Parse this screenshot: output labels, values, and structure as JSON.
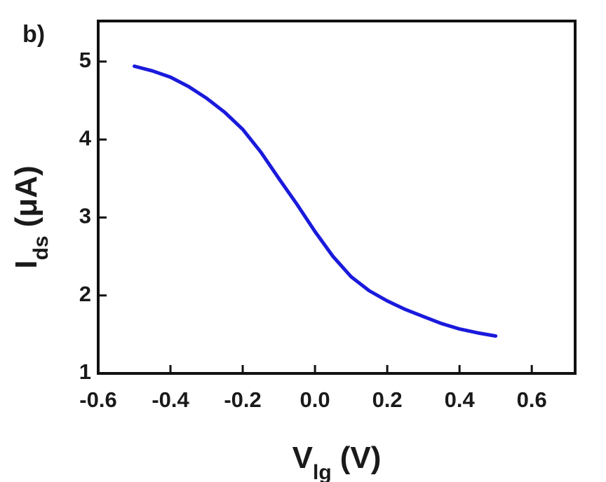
{
  "chart_data": {
    "type": "line",
    "panel_label": "b)",
    "x_label": "V",
    "x_label_sub": "lg",
    "x_label_unit": "(V)",
    "y_label": "I",
    "y_label_sub": "ds",
    "y_label_unit": "(μA)",
    "x": [
      -0.5,
      -0.45,
      -0.4,
      -0.35,
      -0.3,
      -0.25,
      -0.2,
      -0.15,
      -0.1,
      -0.05,
      0.0,
      0.05,
      0.1,
      0.15,
      0.2,
      0.25,
      0.3,
      0.35,
      0.4,
      0.45,
      0.5
    ],
    "series": [
      {
        "color": "#1a1adc",
        "values": [
          4.94,
          4.88,
          4.8,
          4.68,
          4.53,
          4.35,
          4.13,
          3.84,
          3.5,
          3.17,
          2.82,
          2.5,
          2.24,
          2.06,
          1.93,
          1.82,
          1.73,
          1.64,
          1.57,
          1.52,
          1.48
        ]
      }
    ],
    "xlim": [
      -0.6,
      0.72
    ],
    "ylim": [
      1,
      5.52
    ],
    "xticks": [
      -0.6,
      -0.4,
      -0.2,
      {
        "value": 0,
        "label": "0.0"
      },
      0.2,
      0.4,
      0.6
    ],
    "yticks": [
      1,
      2,
      3,
      4,
      5
    ]
  }
}
